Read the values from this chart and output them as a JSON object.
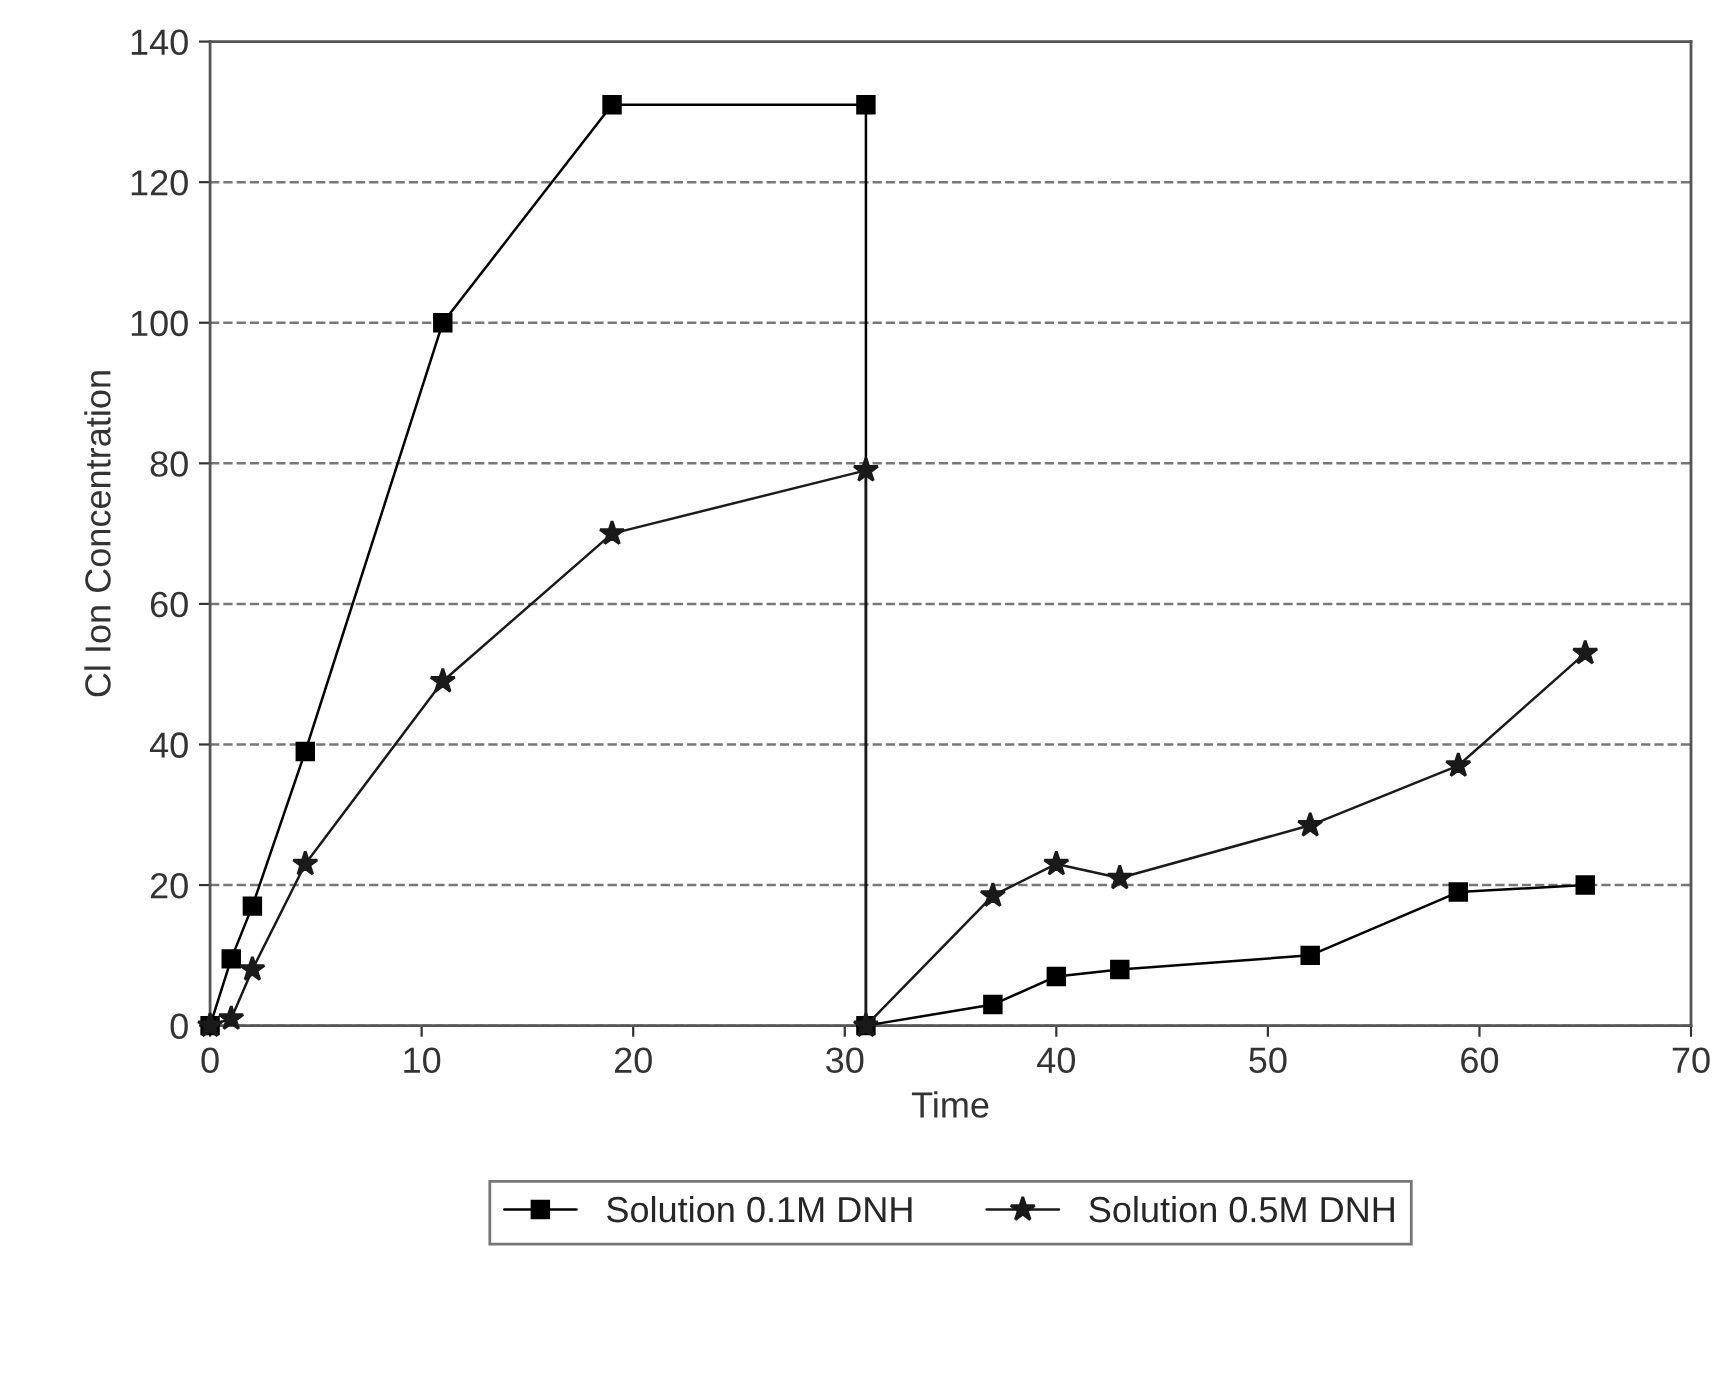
{
  "chart_data": {
    "type": "line",
    "xlabel": "Time",
    "ylabel": "Cl Ion Concentration",
    "xlim": [
      0,
      70
    ],
    "xticks": [
      0,
      10,
      20,
      30,
      40,
      50,
      60,
      70
    ],
    "ylim": [
      0,
      140
    ],
    "yticks": [
      0,
      20,
      40,
      60,
      80,
      100,
      120,
      140
    ],
    "grid": "y",
    "legend": "bottom",
    "line_style": "solid",
    "series": [
      {
        "name": "Solution 0.1M DNH",
        "color": "#000000",
        "marker": "square",
        "x": [
          0,
          1,
          2,
          4.5,
          11,
          19,
          31,
          31,
          37,
          40,
          43,
          52,
          59,
          65
        ],
        "values": [
          0,
          9.5,
          17,
          39,
          100,
          131,
          131,
          0,
          3,
          7,
          8,
          10,
          19,
          20
        ]
      },
      {
        "name": "Solution 0.5M DNH",
        "color": "#1a1a1a",
        "marker": "star",
        "x": [
          0,
          1,
          2,
          4.5,
          11,
          19,
          31,
          31,
          37,
          40,
          43,
          52,
          59,
          65
        ],
        "values": [
          0,
          1,
          8,
          23,
          49,
          70,
          79,
          0,
          18.5,
          23,
          21,
          28.5,
          37,
          53
        ]
      }
    ]
  }
}
